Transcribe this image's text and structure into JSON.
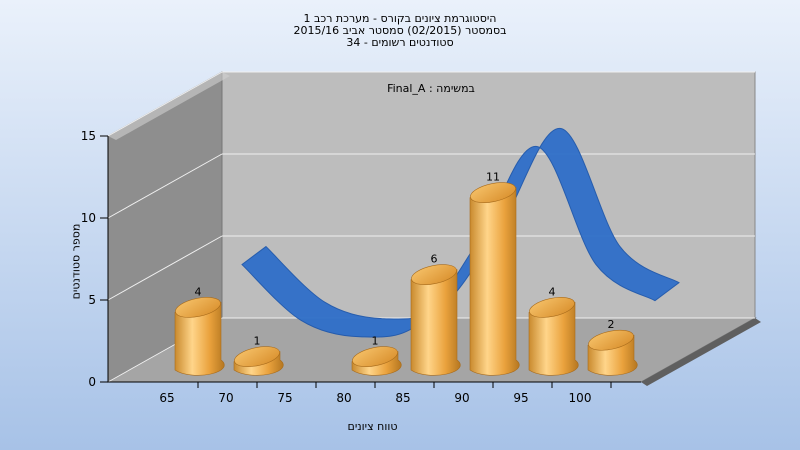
{
  "titles": {
    "line1": "היסטוגרמת ציונים בקורס - מערכת רכב 1",
    "line2": "בסמסטר  (02/2015)  סמסטר אביב 2015/16",
    "line3": "סטודנטים רשומים - 34"
  },
  "colors": {
    "background_top": "#e8f0fb",
    "background_bottom": "#a9c4e8",
    "bar": "#e9a23b",
    "band": "#2f6fc9",
    "band_shadow": "#777777"
  },
  "chart_data": {
    "type": "bar",
    "annotation": "במשימה : Final_A",
    "xlabel": "טווח ציונים",
    "ylabel": "מספר סטודנטים",
    "ylim": [
      0,
      15
    ],
    "yticks": [
      0,
      5,
      10,
      15
    ],
    "xticks": [
      65,
      70,
      75,
      80,
      85,
      90,
      95,
      100
    ],
    "bars": [
      {
        "x": 65,
        "value": 4
      },
      {
        "x": 70,
        "value": 1
      },
      {
        "x": 80,
        "value": 1
      },
      {
        "x": 85,
        "value": 6
      },
      {
        "x": 90,
        "value": 11
      },
      {
        "x": 95,
        "value": 4
      },
      {
        "x": 100,
        "value": 2
      }
    ],
    "curve": {
      "x": [
        65,
        70,
        75,
        80,
        85,
        90,
        95,
        100
      ],
      "y": [
        4.6,
        1.2,
        0.2,
        1.0,
        6.0,
        11.8,
        4.6,
        2.4
      ]
    },
    "grid": true,
    "legend": "none"
  }
}
